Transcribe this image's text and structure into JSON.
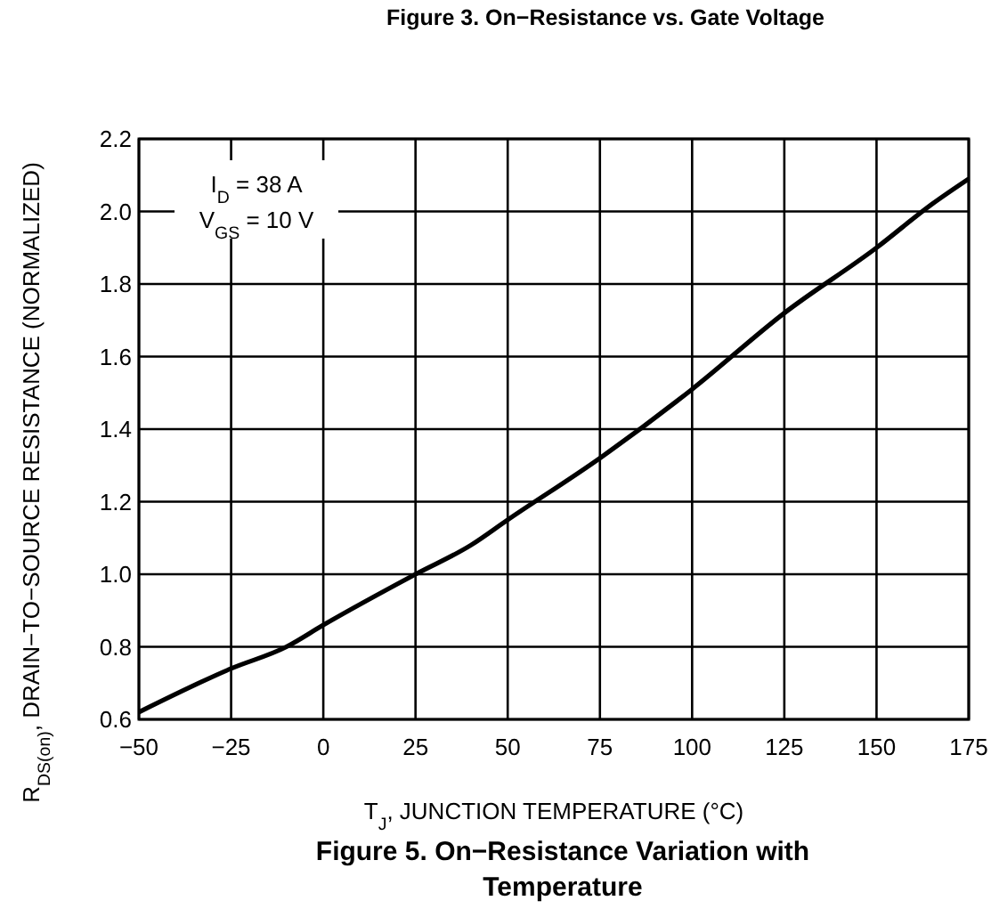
{
  "chart_data": {
    "type": "line",
    "title": "Figure 5. On−Resistance Variation with Temperature",
    "xlabel": "T$_{J}$, JUNCTION TEMPERATURE (°C)",
    "ylabel": "R$_{DS(on)}$, DRAIN−TO−SOURCE RESISTANCE (NORMALIZED)",
    "annotations": [
      "I$_{D}$ = 38 A",
      "V$_{GS}$ = 10 V",
      "Figure 3. On−Resistance vs. Gate Voltage"
    ],
    "x": [
      -50,
      -25,
      -10,
      0,
      25,
      40,
      50,
      75,
      100,
      125,
      150,
      165,
      175
    ],
    "series": [
      {
        "color": "#000000",
        "values": [
          0.62,
          0.74,
          0.8,
          0.86,
          1.0,
          1.08,
          1.15,
          1.32,
          1.51,
          1.72,
          1.9,
          2.02,
          2.09
        ]
      }
    ],
    "xlim": [
      -50,
      175
    ],
    "xticks": [
      -50,
      -25,
      0,
      25,
      50,
      75,
      100,
      125,
      150,
      175
    ],
    "ylim": [
      0.6,
      2.2
    ],
    "yticks": [
      {
        "value": 0.6,
        "label": "0.6"
      },
      {
        "value": 0.8,
        "label": "0.8"
      },
      {
        "value": 1.0,
        "label": "1.0"
      },
      {
        "value": 1.2,
        "label": "1.2"
      },
      {
        "value": 1.4,
        "label": "1.4"
      },
      {
        "value": 1.6,
        "label": "1.6"
      },
      {
        "value": 1.8,
        "label": "1.8"
      },
      {
        "value": 2.0,
        "label": "2.0"
      },
      {
        "value": 2.2,
        "label": "2.2"
      }
    ],
    "grid": true,
    "marker": "none",
    "line_style": "solid"
  }
}
